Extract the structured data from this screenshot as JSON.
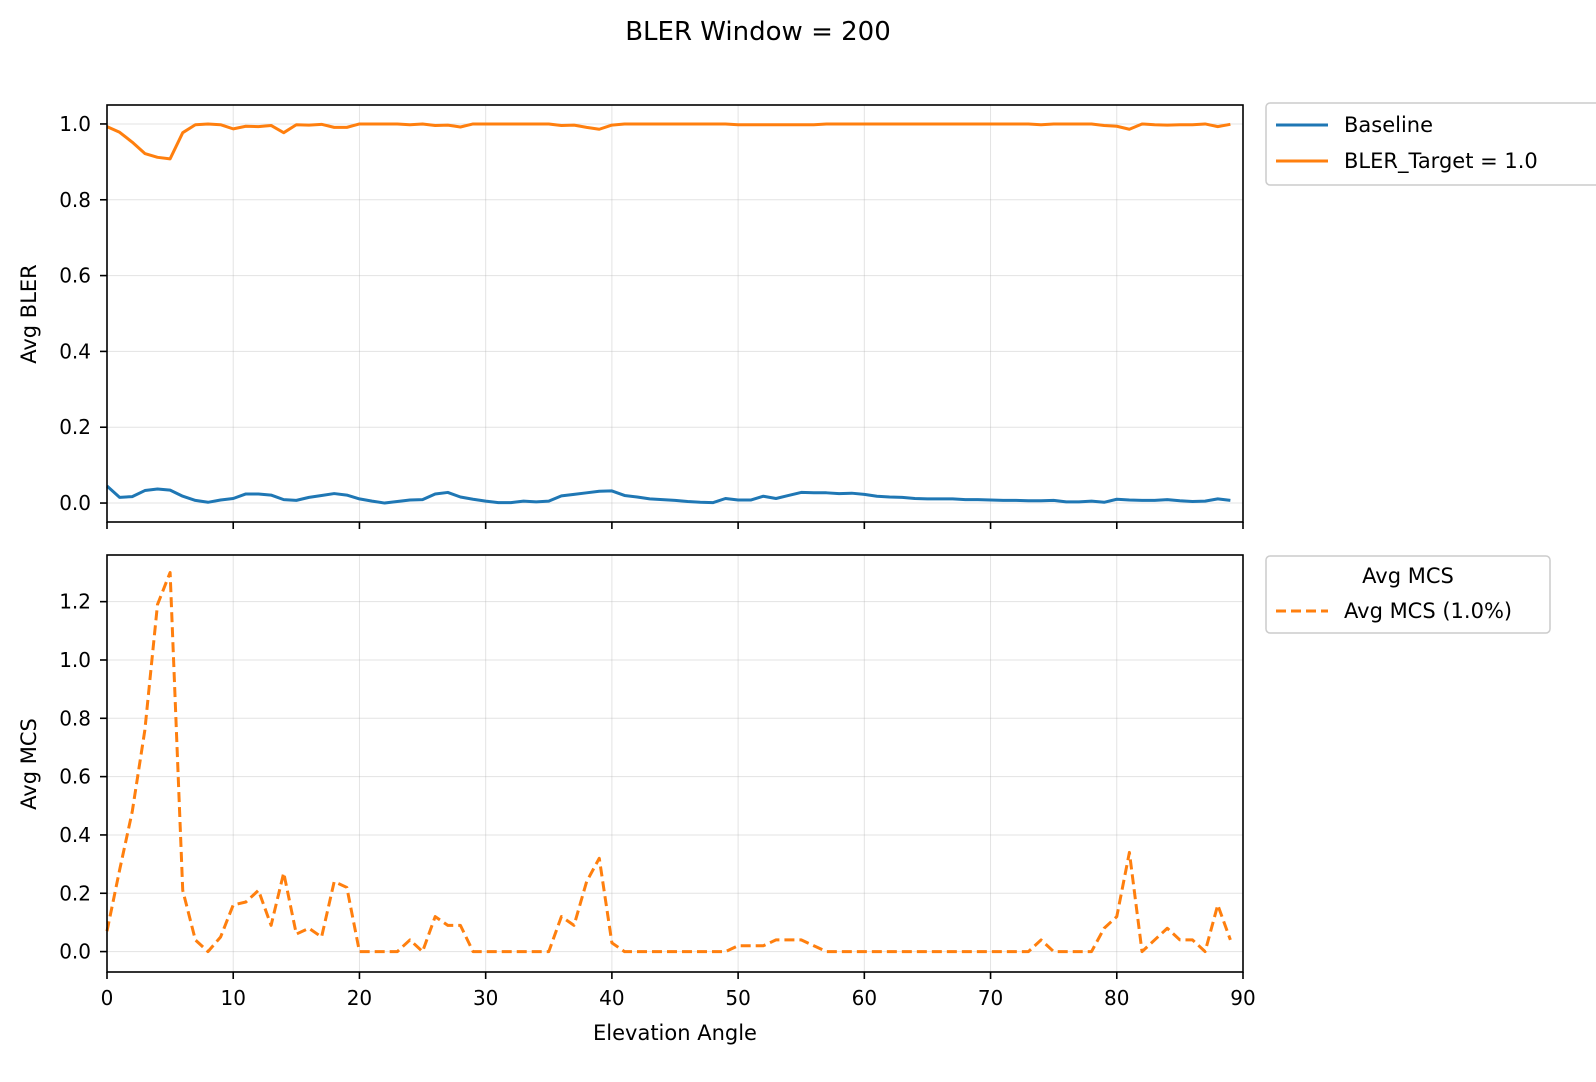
{
  "chart_data": {
    "title": "BLER Window = 200",
    "xlabel": "Elevation Angle",
    "x_ticks": [
      0,
      10,
      20,
      30,
      40,
      50,
      60,
      70,
      80,
      90
    ],
    "xlim": [
      0,
      90
    ],
    "grid": true,
    "x": [
      0,
      1,
      2,
      3,
      4,
      5,
      6,
      7,
      8,
      9,
      10,
      11,
      12,
      13,
      14,
      15,
      16,
      17,
      18,
      19,
      20,
      21,
      22,
      23,
      24,
      25,
      26,
      27,
      28,
      29,
      30,
      31,
      32,
      33,
      34,
      35,
      36,
      37,
      38,
      39,
      40,
      41,
      42,
      43,
      44,
      45,
      46,
      47,
      48,
      49,
      50,
      51,
      52,
      53,
      54,
      55,
      56,
      57,
      58,
      59,
      60,
      61,
      62,
      63,
      64,
      65,
      66,
      67,
      68,
      69,
      70,
      71,
      72,
      73,
      74,
      75,
      76,
      77,
      78,
      79,
      80,
      81,
      82,
      83,
      84,
      85,
      86,
      87,
      88,
      89
    ],
    "panels": [
      {
        "type": "line",
        "ylabel": "Avg BLER",
        "ylim": [
          -0.05,
          1.05
        ],
        "y_ticks": [
          "0.0",
          "0.2",
          "0.4",
          "0.6",
          "0.8",
          "1.0"
        ],
        "legend_placement": "upper-right-outside",
        "legend_title": "",
        "series": [
          {
            "name": "Baseline",
            "color": "#1f77b4",
            "style": "solid",
            "values": [
              0.045,
              0.015,
              0.017,
              0.033,
              0.037,
              0.034,
              0.018,
              0.007,
              0.002,
              0.008,
              0.012,
              0.024,
              0.024,
              0.021,
              0.009,
              0.007,
              0.015,
              0.02,
              0.025,
              0.021,
              0.011,
              0.005,
              0.0,
              0.004,
              0.008,
              0.009,
              0.024,
              0.028,
              0.016,
              0.01,
              0.005,
              0.001,
              0.001,
              0.005,
              0.003,
              0.005,
              0.019,
              0.023,
              0.027,
              0.031,
              0.032,
              0.02,
              0.016,
              0.011,
              0.009,
              0.007,
              0.004,
              0.002,
              0.001,
              0.012,
              0.008,
              0.008,
              0.018,
              0.012,
              0.02,
              0.028,
              0.027,
              0.027,
              0.025,
              0.026,
              0.023,
              0.018,
              0.016,
              0.015,
              0.012,
              0.011,
              0.011,
              0.011,
              0.009,
              0.009,
              0.008,
              0.007,
              0.007,
              0.006,
              0.006,
              0.007,
              0.003,
              0.003,
              0.005,
              0.002,
              0.01,
              0.008,
              0.007,
              0.007,
              0.009,
              0.006,
              0.004,
              0.005,
              0.011,
              0.007
            ]
          },
          {
            "name": "BLER_Target = 1.0",
            "color": "#ff7f0e",
            "style": "solid",
            "values": [
              0.993,
              0.978,
              0.952,
              0.922,
              0.912,
              0.908,
              0.977,
              0.998,
              1.0,
              0.998,
              0.987,
              0.994,
              0.993,
              0.996,
              0.977,
              0.998,
              0.997,
              0.999,
              0.991,
              0.991,
              1.0,
              1.0,
              1.0,
              1.0,
              0.998,
              1.0,
              0.996,
              0.997,
              0.992,
              1.0,
              1.0,
              1.0,
              1.0,
              1.0,
              1.0,
              1.0,
              0.996,
              0.997,
              0.991,
              0.986,
              0.997,
              1.0,
              1.0,
              1.0,
              1.0,
              1.0,
              1.0,
              1.0,
              1.0,
              1.0,
              0.998,
              0.998,
              0.998,
              0.998,
              0.998,
              0.998,
              0.998,
              1.0,
              1.0,
              1.0,
              1.0,
              1.0,
              1.0,
              1.0,
              1.0,
              1.0,
              1.0,
              1.0,
              1.0,
              1.0,
              1.0,
              1.0,
              1.0,
              1.0,
              0.998,
              1.0,
              1.0,
              1.0,
              1.0,
              0.996,
              0.994,
              0.986,
              1.0,
              0.998,
              0.997,
              0.998,
              0.998,
              1.0,
              0.993,
              0.999
            ]
          }
        ]
      },
      {
        "type": "line",
        "ylabel": "Avg MCS",
        "ylim": [
          -0.07,
          1.36
        ],
        "y_ticks": [
          "0.0",
          "0.2",
          "0.4",
          "0.6",
          "0.8",
          "1.0",
          "1.2"
        ],
        "legend_placement": "upper-right-outside",
        "legend_title": "Avg MCS",
        "series": [
          {
            "name": "Avg MCS (1.0%)",
            "color": "#ff7f0e",
            "style": "dashed",
            "values": [
              0.07,
              0.28,
              0.48,
              0.76,
              1.19,
              1.3,
              0.21,
              0.04,
              0.0,
              0.05,
              0.16,
              0.17,
              0.21,
              0.09,
              0.27,
              0.06,
              0.08,
              0.05,
              0.24,
              0.22,
              0.0,
              0.0,
              0.0,
              0.0,
              0.04,
              0.0,
              0.12,
              0.09,
              0.09,
              0.0,
              0.0,
              0.0,
              0.0,
              0.0,
              0.0,
              0.0,
              0.12,
              0.09,
              0.24,
              0.32,
              0.03,
              0.0,
              0.0,
              0.0,
              0.0,
              0.0,
              0.0,
              0.0,
              0.0,
              0.0,
              0.02,
              0.02,
              0.02,
              0.04,
              0.04,
              0.04,
              0.02,
              0.0,
              0.0,
              0.0,
              0.0,
              0.0,
              0.0,
              0.0,
              0.0,
              0.0,
              0.0,
              0.0,
              0.0,
              0.0,
              0.0,
              0.0,
              0.0,
              0.0,
              0.04,
              0.0,
              0.0,
              0.0,
              0.0,
              0.08,
              0.12,
              0.34,
              0.0,
              0.04,
              0.08,
              0.04,
              0.04,
              0.0,
              0.16,
              0.04
            ]
          }
        ]
      }
    ]
  }
}
